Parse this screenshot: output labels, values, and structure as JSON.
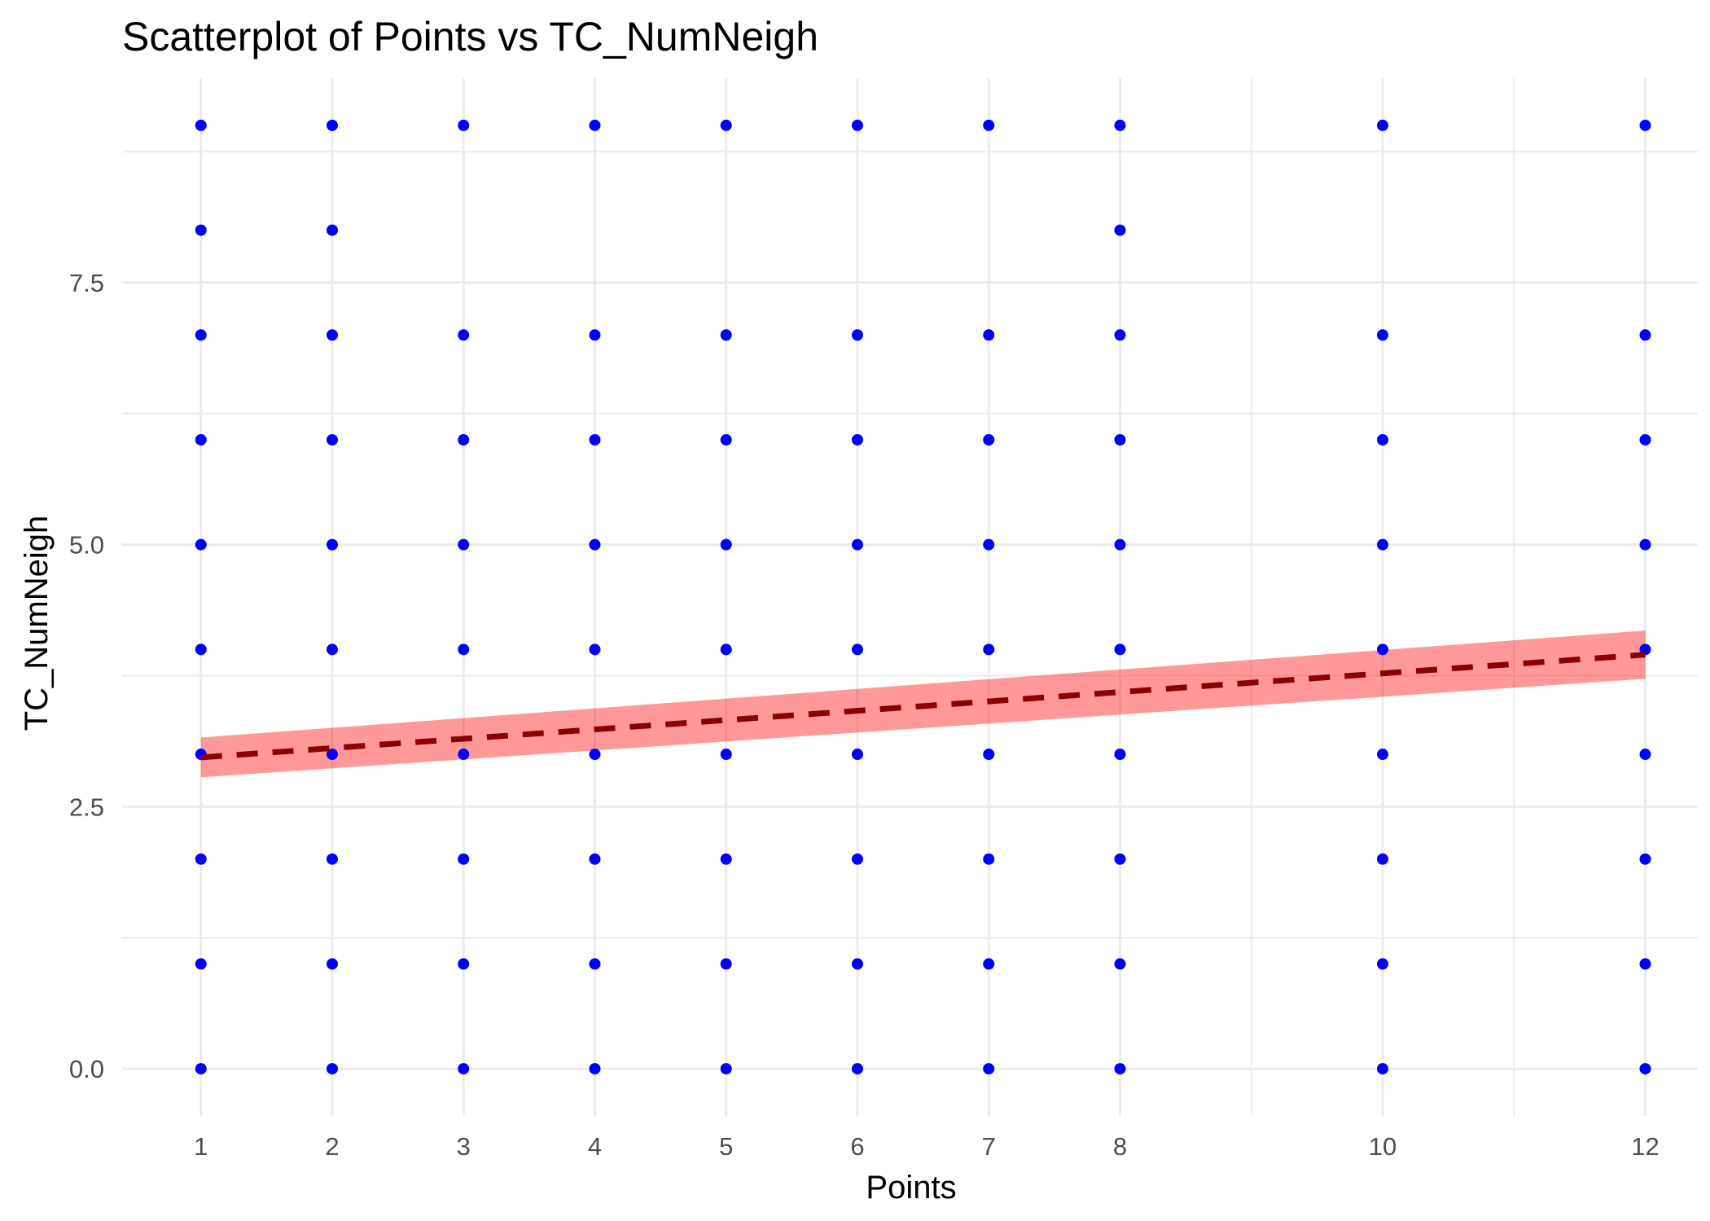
{
  "chart_data": {
    "type": "scatter",
    "title": "Scatterplot of Points vs  TC_NumNeigh",
    "xlabel": "Points",
    "ylabel": "TC_NumNeigh",
    "xlim": [
      0.4,
      12.4
    ],
    "ylim": [
      -0.45,
      9.45
    ],
    "x_ticks": [
      1,
      2,
      3,
      4,
      5,
      6,
      7,
      8,
      10,
      12
    ],
    "x_tick_labels": [
      "1",
      "2",
      "3",
      "4",
      "5",
      "6",
      "7",
      "8",
      "10",
      "12"
    ],
    "y_ticks": [
      0,
      2.5,
      5,
      7.5
    ],
    "y_tick_labels": [
      "0.0",
      "2.5",
      "5.0",
      "7.5"
    ],
    "grid": true,
    "point_color": "#0000ff",
    "trend_color": "#8b0000",
    "band_color": "#ff0000",
    "band_opacity": 0.4,
    "points": {
      "1": [
        0,
        1,
        2,
        3,
        4,
        5,
        6,
        7,
        8,
        9
      ],
      "2": [
        0,
        1,
        2,
        3,
        4,
        5,
        6,
        7,
        8,
        9
      ],
      "3": [
        0,
        1,
        2,
        3,
        4,
        5,
        6,
        7,
        9
      ],
      "4": [
        0,
        1,
        2,
        3,
        4,
        5,
        6,
        7,
        9
      ],
      "5": [
        0,
        1,
        2,
        3,
        4,
        5,
        6,
        7,
        9
      ],
      "6": [
        0,
        1,
        2,
        3,
        4,
        5,
        6,
        7,
        9
      ],
      "7": [
        0,
        1,
        2,
        3,
        4,
        5,
        6,
        7,
        9
      ],
      "8": [
        0,
        1,
        2,
        3,
        4,
        5,
        6,
        7,
        8,
        9
      ],
      "10": [
        0,
        1,
        2,
        3,
        4,
        5,
        6,
        7,
        9
      ],
      "12": [
        0,
        1,
        2,
        3,
        4,
        5,
        6,
        7,
        9
      ]
    },
    "trend_line": {
      "style": "dashed",
      "x": [
        1,
        12
      ],
      "y": [
        2.97,
        3.95
      ],
      "band_lower": [
        2.78,
        3.72
      ],
      "band_upper": [
        3.16,
        4.18
      ]
    }
  }
}
